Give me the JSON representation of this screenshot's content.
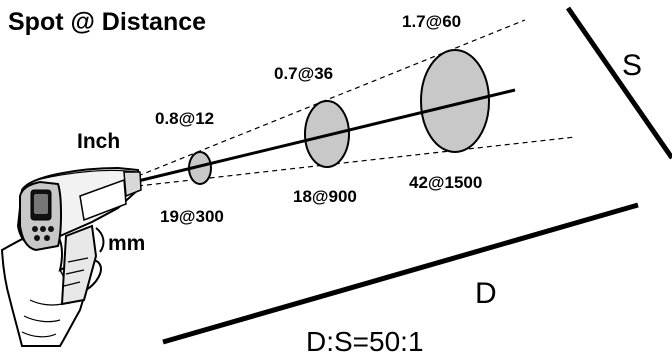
{
  "title": "Spot @ Distance",
  "units": {
    "inch": "Inch",
    "mm": "mm"
  },
  "spot_labels": {
    "inch": [
      "0.8@12",
      "0.7@36",
      "1.7@60"
    ],
    "mm": [
      "19@300",
      "18@900",
      "42@1500"
    ]
  },
  "axes": {
    "spot_axis": "S",
    "distance_axis": "D"
  },
  "ratio": "D:S=50:1",
  "colors": {
    "spot_fill": "#c8c8c8",
    "line": "#000000"
  },
  "icon": "infrared-thermometer-gun"
}
